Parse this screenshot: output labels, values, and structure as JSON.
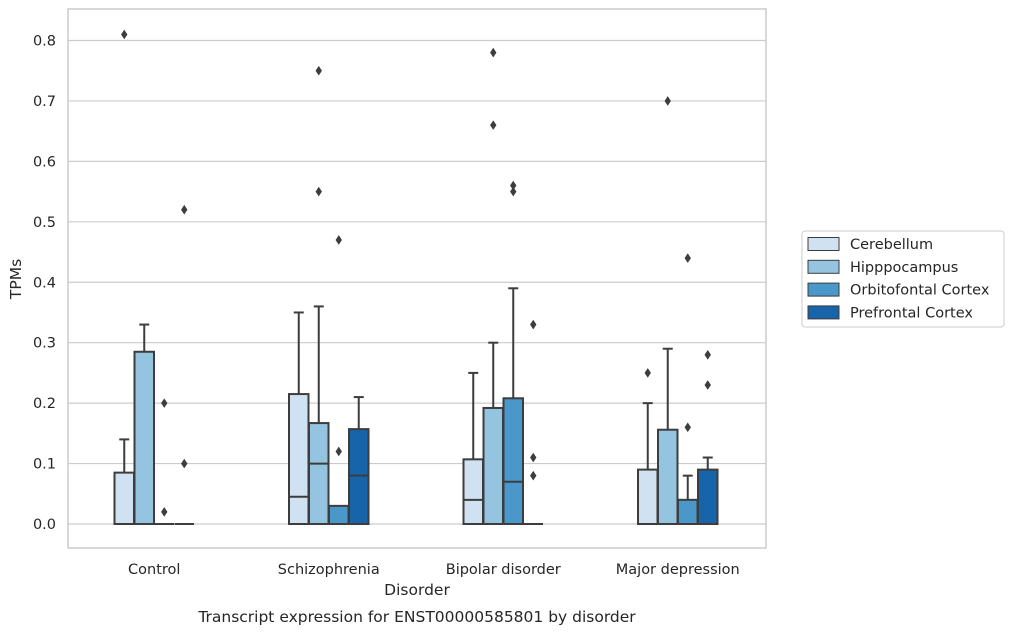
{
  "caption": "Transcript expression for ENST00000585801 by disorder",
  "colors": {
    "Cerebellum": "#d0e1f2",
    "Hipppocampus": "#94c4df",
    "Orbitofontal Cortex": "#4a98c9",
    "Prefrontal Cortex": "#1764ab",
    "edge": "#3d3d3d",
    "grid": "#cccccc"
  },
  "chart_data": {
    "type": "box",
    "title": "",
    "xlabel": "Disorder",
    "ylabel": "TPMs",
    "ylim": [
      -0.04,
      0.855
    ],
    "yticks": [
      "0.0",
      "0.1",
      "0.2",
      "0.3",
      "0.4",
      "0.5",
      "0.6",
      "0.7",
      "0.8"
    ],
    "grid": "horizontal",
    "legend_position": "right",
    "categories": [
      "Control",
      "Schizophrenia",
      "Bipolar disorder",
      "Major depression"
    ],
    "series": [
      {
        "name": "Cerebellum",
        "boxes": [
          {
            "q1": 0.0,
            "median": 0.0,
            "q3": 0.085,
            "whisker_low": 0.0,
            "whisker_high": 0.14,
            "outliers": [
              0.81
            ]
          },
          {
            "q1": 0.0,
            "median": 0.045,
            "q3": 0.215,
            "whisker_low": 0.0,
            "whisker_high": 0.35,
            "outliers": []
          },
          {
            "q1": 0.0,
            "median": 0.04,
            "q3": 0.107,
            "whisker_low": 0.0,
            "whisker_high": 0.25,
            "outliers": []
          },
          {
            "q1": 0.0,
            "median": 0.0,
            "q3": 0.09,
            "whisker_low": 0.0,
            "whisker_high": 0.2,
            "outliers": [
              0.25
            ]
          }
        ]
      },
      {
        "name": "Hipppocampus",
        "boxes": [
          {
            "q1": 0.0,
            "median": 0.0,
            "q3": 0.285,
            "whisker_low": 0.0,
            "whisker_high": 0.33,
            "outliers": []
          },
          {
            "q1": 0.0,
            "median": 0.1,
            "q3": 0.167,
            "whisker_low": 0.0,
            "whisker_high": 0.36,
            "outliers": [
              0.55,
              0.75
            ]
          },
          {
            "q1": 0.0,
            "median": 0.0,
            "q3": 0.192,
            "whisker_low": 0.0,
            "whisker_high": 0.3,
            "outliers": [
              0.66,
              0.78
            ]
          },
          {
            "q1": 0.0,
            "median": 0.0,
            "q3": 0.156,
            "whisker_low": 0.0,
            "whisker_high": 0.29,
            "outliers": [
              0.7
            ]
          }
        ]
      },
      {
        "name": "Orbitofontal Cortex",
        "boxes": [
          {
            "q1": 0.0,
            "median": 0.0,
            "q3": 0.0,
            "whisker_low": 0.0,
            "whisker_high": 0.0,
            "outliers": [
              0.02,
              0.2
            ]
          },
          {
            "q1": 0.0,
            "median": 0.0,
            "q3": 0.03,
            "whisker_low": 0.0,
            "whisker_high": 0.03,
            "outliers": [
              0.12,
              0.47
            ]
          },
          {
            "q1": 0.0,
            "median": 0.07,
            "q3": 0.208,
            "whisker_low": 0.0,
            "whisker_high": 0.39,
            "outliers": [
              0.55,
              0.56
            ]
          },
          {
            "q1": 0.0,
            "median": 0.0,
            "q3": 0.04,
            "whisker_low": 0.0,
            "whisker_high": 0.08,
            "outliers": [
              0.16,
              0.44
            ]
          }
        ]
      },
      {
        "name": "Prefrontal Cortex",
        "boxes": [
          {
            "q1": 0.0,
            "median": 0.0,
            "q3": 0.0,
            "whisker_low": 0.0,
            "whisker_high": 0.0,
            "outliers": [
              0.1,
              0.52
            ]
          },
          {
            "q1": 0.0,
            "median": 0.08,
            "q3": 0.157,
            "whisker_low": 0.0,
            "whisker_high": 0.21,
            "outliers": []
          },
          {
            "q1": 0.0,
            "median": 0.0,
            "q3": 0.0,
            "whisker_low": 0.0,
            "whisker_high": 0.0,
            "outliers": [
              0.08,
              0.11,
              0.33
            ]
          },
          {
            "q1": 0.0,
            "median": 0.0,
            "q3": 0.09,
            "whisker_low": 0.0,
            "whisker_high": 0.11,
            "outliers": [
              0.23,
              0.28
            ]
          }
        ]
      }
    ]
  }
}
